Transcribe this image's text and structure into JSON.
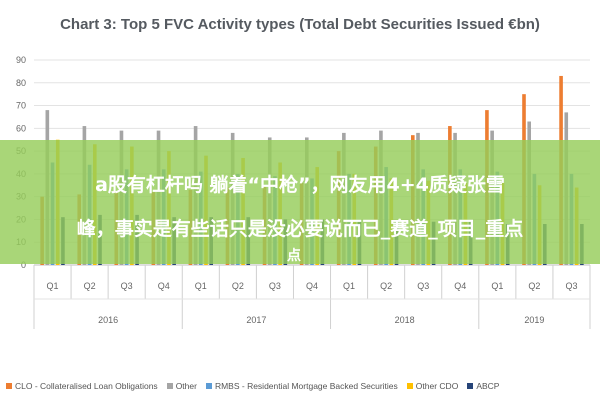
{
  "chart_data": {
    "type": "bar",
    "title": "Chart 3: Top 5 FVC Activity types (Total Debt Securities Issued €bn)",
    "years": [
      {
        "label": "2016",
        "quarters": [
          "Q1",
          "Q2",
          "Q3",
          "Q4"
        ]
      },
      {
        "label": "2017",
        "quarters": [
          "Q1",
          "Q2",
          "Q3",
          "Q4"
        ]
      },
      {
        "label": "2018",
        "quarters": [
          "Q1",
          "Q2",
          "Q3",
          "Q4"
        ]
      },
      {
        "label": "2019",
        "quarters": [
          "Q1",
          "Q2",
          "Q3"
        ]
      }
    ],
    "categories": [
      "Q1",
      "Q2",
      "Q3",
      "Q4",
      "Q1",
      "Q2",
      "Q3",
      "Q4",
      "Q1",
      "Q2",
      "Q3",
      "Q4",
      "Q1",
      "Q2",
      "Q3"
    ],
    "ylim": [
      0,
      90
    ],
    "yticks": [
      0,
      10,
      20,
      30,
      40,
      50,
      60,
      70,
      80,
      90
    ],
    "grid": true,
    "legend_position": "bottom",
    "series": [
      {
        "name": "CLO - Collateralised Loan Obligations",
        "color": "#ed7d31",
        "values": [
          30,
          31,
          32,
          32,
          33,
          34,
          35,
          36,
          50,
          52,
          57,
          61,
          68,
          75,
          83
        ]
      },
      {
        "name": "Other",
        "color": "#a5a5a5",
        "values": [
          68,
          61,
          59,
          59,
          61,
          58,
          56,
          56,
          58,
          59,
          58,
          58,
          59,
          63,
          67
        ]
      },
      {
        "name": "RMBS - Residential Mortgage Backed Securities",
        "color": "#5b9bd5",
        "values": [
          45,
          44,
          42,
          42,
          41,
          40,
          39,
          38,
          40,
          43,
          42,
          42,
          41,
          40,
          40
        ]
      },
      {
        "name": "Other CDO",
        "color": "#ffc000",
        "values": [
          55,
          53,
          52,
          50,
          48,
          47,
          45,
          43,
          40,
          38,
          37,
          36,
          36,
          35,
          34
        ]
      },
      {
        "name": "ABCP",
        "color": "#264478",
        "values": [
          21,
          22,
          22,
          21,
          21,
          21,
          20,
          20,
          19,
          19,
          19,
          19,
          18,
          18,
          18
        ]
      }
    ]
  },
  "overlay": {
    "line1": "a股有杠杆吗 躺着“中枪”，网友用4+4质疑张雪",
    "line2": "峰，事实是有些话只是没必要说而已_赛道_项目_重点",
    "line3": "点"
  }
}
